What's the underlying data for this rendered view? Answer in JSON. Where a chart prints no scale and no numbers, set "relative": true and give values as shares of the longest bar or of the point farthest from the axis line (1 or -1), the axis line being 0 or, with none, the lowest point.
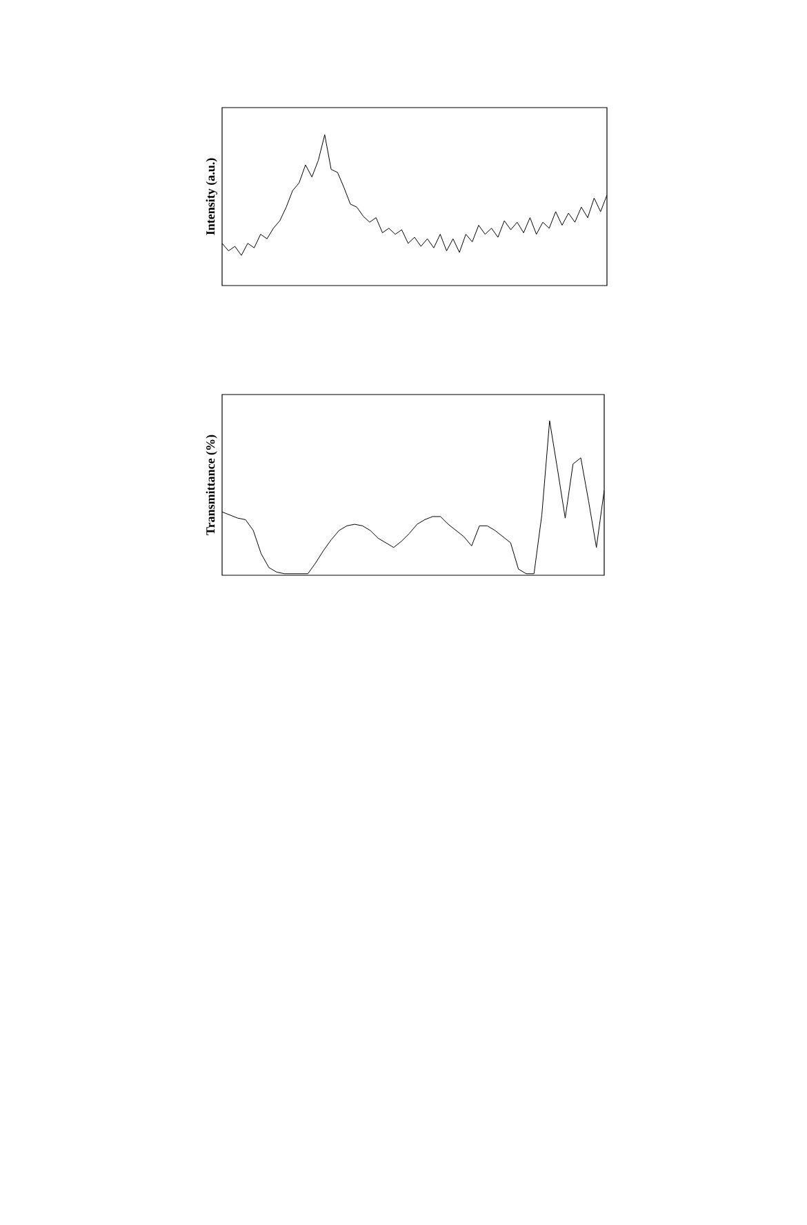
{
  "chart_data": [
    {
      "type": "line",
      "relative": true,
      "ylabel": "Intensity (a.u.)",
      "color": "#000000",
      "categories": [
        null,
        null,
        null,
        null,
        null,
        null,
        null,
        null,
        null,
        null,
        null,
        null,
        null,
        null,
        null,
        null,
        null,
        null,
        null,
        null,
        null,
        null,
        null,
        null,
        null,
        null,
        null,
        null,
        null,
        null,
        null,
        null,
        null,
        null,
        null,
        null,
        null,
        null,
        null,
        null,
        null,
        null,
        null,
        null,
        null,
        null,
        null,
        null,
        null,
        null,
        null,
        null,
        null,
        null,
        null,
        null,
        null,
        null,
        null,
        null,
        null
      ],
      "values": [
        0.28,
        0.23,
        0.26,
        0.2,
        0.28,
        0.25,
        0.34,
        0.31,
        0.38,
        0.43,
        0.52,
        0.63,
        0.68,
        0.8,
        0.72,
        0.83,
        1.0,
        0.77,
        0.75,
        0.65,
        0.54,
        0.52,
        0.46,
        0.42,
        0.45,
        0.35,
        0.38,
        0.34,
        0.37,
        0.28,
        0.32,
        0.26,
        0.31,
        0.25,
        0.34,
        0.23,
        0.31,
        0.22,
        0.34,
        0.29,
        0.4,
        0.34,
        0.38,
        0.32,
        0.43,
        0.37,
        0.42,
        0.35,
        0.45,
        0.34,
        0.42,
        0.38,
        0.49,
        0.4,
        0.48,
        0.42,
        0.52,
        0.45,
        0.58,
        0.49,
        0.6
      ]
    },
    {
      "type": "line",
      "relative": true,
      "ylabel": "Transmittance (%)",
      "color": "#000000",
      "categories": [
        null,
        null,
        null,
        null,
        null,
        null,
        null,
        null,
        null,
        null,
        null,
        null,
        null,
        null,
        null,
        null,
        null,
        null,
        null,
        null,
        null,
        null,
        null,
        null,
        null,
        null,
        null,
        null,
        null,
        null,
        null,
        null,
        null,
        null,
        null,
        null,
        null,
        null,
        null,
        null,
        null,
        null,
        null,
        null,
        null,
        null,
        null,
        null,
        null,
        null
      ],
      "values": [
        0.41,
        0.39,
        0.37,
        0.36,
        0.29,
        0.14,
        0.05,
        0.02,
        0.01,
        0.01,
        0.01,
        0.01,
        0.08,
        0.16,
        0.23,
        0.29,
        0.32,
        0.33,
        0.32,
        0.29,
        0.24,
        0.21,
        0.18,
        0.22,
        0.27,
        0.33,
        0.36,
        0.38,
        0.38,
        0.33,
        0.29,
        0.25,
        0.19,
        0.32,
        0.32,
        0.29,
        0.25,
        0.21,
        0.04,
        0.01,
        0.01,
        0.39,
        1.0,
        0.69,
        0.37,
        0.72,
        0.76,
        0.48,
        0.18,
        0.55
      ]
    }
  ]
}
